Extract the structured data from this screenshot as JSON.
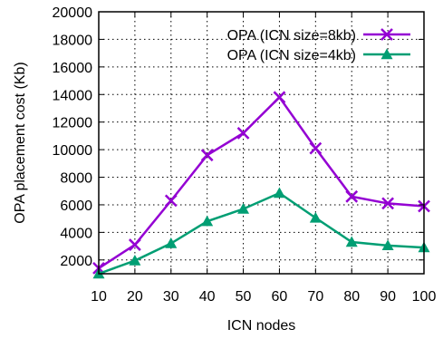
{
  "chart_data": {
    "type": "line",
    "xlabel": "ICN nodes",
    "ylabel": "OPA placement cost (Kb)",
    "x": [
      10,
      20,
      30,
      40,
      50,
      60,
      70,
      80,
      90,
      100
    ],
    "xlim": [
      10,
      100
    ],
    "ylim": [
      1000,
      20000
    ],
    "yticks": [
      2000,
      4000,
      6000,
      8000,
      10000,
      12000,
      14000,
      16000,
      18000,
      20000
    ],
    "grid": true,
    "legend_position": "top-right",
    "series": [
      {
        "name": "OPA (ICN size=8kb)",
        "color": "#9400d3",
        "marker": "x",
        "values": [
          1400,
          3100,
          6300,
          9600,
          11200,
          13800,
          10100,
          6600,
          6100,
          5900
        ]
      },
      {
        "name": "OPA (ICN size=4kb)",
        "color": "#009e73",
        "marker": "triangle",
        "values": [
          1000,
          1950,
          3200,
          4800,
          5700,
          6850,
          5050,
          3300,
          3050,
          2900
        ]
      }
    ]
  }
}
